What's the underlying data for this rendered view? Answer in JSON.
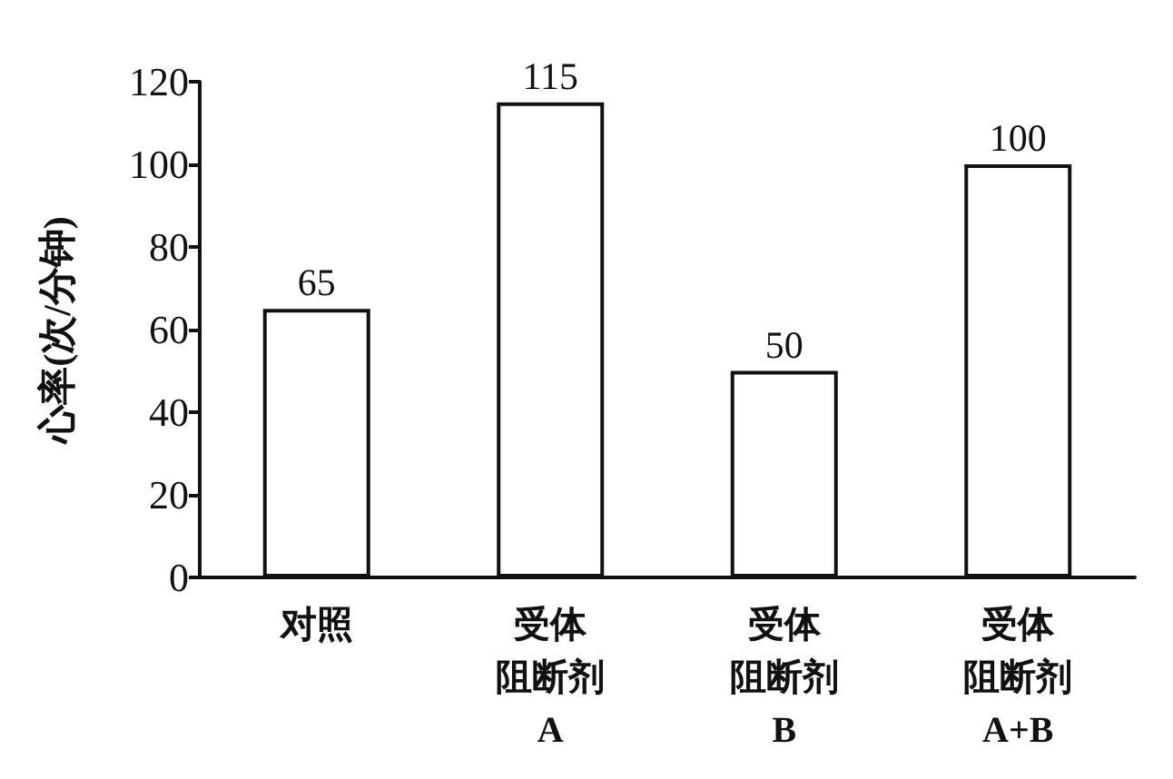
{
  "chart_data": {
    "type": "bar",
    "ylabel": "心率(次/分钟)",
    "categories": [
      "对照",
      "受体阻断剂A",
      "受体阻断剂B",
      "受体阻断剂A+B"
    ],
    "values": [
      65,
      115,
      50,
      100
    ],
    "color": "#ffffff",
    "ylim": [
      0,
      120
    ],
    "yticks": [
      0,
      20,
      40,
      60,
      80,
      100,
      120
    ],
    "grid": false,
    "data_labels": true
  }
}
